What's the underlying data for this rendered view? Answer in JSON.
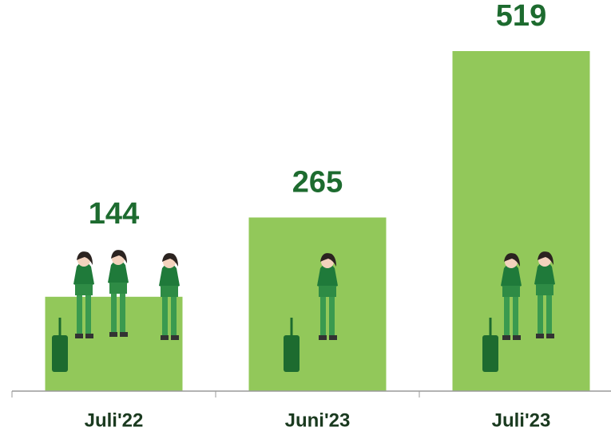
{
  "chart_data": {
    "type": "bar",
    "categories": [
      "Juli'22",
      "Juni'23",
      "Juli'23"
    ],
    "values": [
      144,
      265,
      519
    ],
    "color": "#92c85a"
  }
}
